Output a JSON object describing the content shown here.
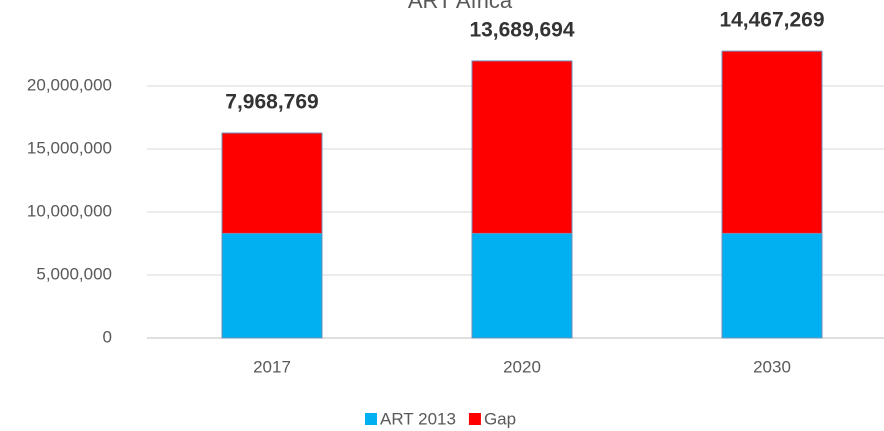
{
  "chart_data": {
    "type": "stacked-bar",
    "title": "ART Africa",
    "categories": [
      "2017",
      "2020",
      "2030"
    ],
    "series": [
      {
        "name": "ART 2013",
        "color": "#00b0f0",
        "values": [
          8300000,
          8300000,
          8300000
        ]
      },
      {
        "name": "Gap",
        "color": "#ff0000",
        "values": [
          7968769,
          13689694,
          14467269
        ],
        "value_labels": [
          "7,968,769",
          "13,689,694",
          "14,467,269"
        ]
      }
    ],
    "ylim": [
      0,
      25000000
    ],
    "yticks": [
      0,
      {
        "value": 5000000,
        "label": "5,000,000"
      },
      {
        "value": 10000000,
        "label": "10,000,000"
      },
      {
        "value": 15000000,
        "label": "15,000,000"
      },
      {
        "value": 20000000,
        "label": "20,000,000"
      }
    ],
    "grid": true
  }
}
